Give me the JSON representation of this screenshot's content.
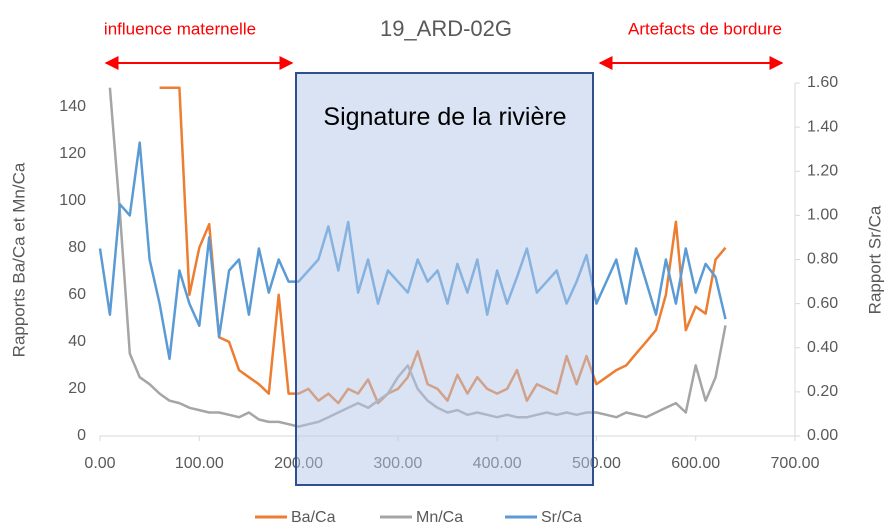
{
  "chart_data": {
    "type": "line",
    "title": "19_ARD-02G",
    "y_label": "Rapports Ba/Ca et Mn/Ca",
    "y2_label": "Rapport Sr/Ca",
    "annotations": [
      "influence maternelle",
      "Artefacts de bordure",
      "Signature de la rivière"
    ],
    "x": [
      0,
      10,
      20,
      30,
      40,
      50,
      60,
      70,
      80,
      90,
      100,
      110,
      120,
      130,
      140,
      150,
      160,
      170,
      180,
      190,
      200,
      210,
      220,
      230,
      240,
      250,
      260,
      270,
      280,
      290,
      300,
      310,
      320,
      330,
      340,
      350,
      360,
      370,
      380,
      390,
      400,
      410,
      420,
      430,
      440,
      450,
      460,
      470,
      480,
      490,
      500,
      510,
      520,
      530,
      540,
      550,
      560,
      570,
      580,
      590,
      600,
      610,
      620,
      630
    ],
    "xlim": [
      0,
      700
    ],
    "xticks": [
      {
        "value": 0,
        "label": "0.00"
      },
      {
        "value": 100,
        "label": "100.00"
      },
      {
        "value": 200,
        "label": "200.00"
      },
      {
        "value": 300,
        "label": "300.00"
      },
      {
        "value": 400,
        "label": "400.00"
      },
      {
        "value": 500,
        "label": "500.00"
      },
      {
        "value": 600,
        "label": "600.00"
      },
      {
        "value": 700,
        "label": "700.00"
      }
    ],
    "ylim": [
      0,
      150
    ],
    "yticks": [
      0,
      20,
      40,
      60,
      80,
      100,
      120,
      140
    ],
    "y2lim": [
      0,
      1.6
    ],
    "y2ticks": [
      {
        "value": 0,
        "label": "0.00"
      },
      {
        "value": 0.2,
        "label": "0.20"
      },
      {
        "value": 0.4,
        "label": "0.40"
      },
      {
        "value": 0.6,
        "label": "0.60"
      },
      {
        "value": 0.8,
        "label": "0.80"
      },
      {
        "value": 1,
        "label": "1.00"
      },
      {
        "value": 1.2,
        "label": "1.20"
      },
      {
        "value": 1.4,
        "label": "1.40"
      },
      {
        "value": 1.6,
        "label": "1.60"
      }
    ],
    "series": [
      {
        "name": "Ba/Ca",
        "color": "#ed7d31",
        "values": [
          null,
          null,
          null,
          null,
          null,
          null,
          148,
          148,
          148,
          60,
          80,
          90,
          42,
          40,
          28,
          25,
          22,
          18,
          60,
          18,
          18,
          20,
          15,
          18,
          14,
          20,
          18,
          24,
          14,
          18,
          20,
          25,
          36,
          22,
          20,
          15,
          26,
          18,
          25,
          20,
          18,
          20,
          28,
          15,
          22,
          20,
          18,
          34,
          22,
          34,
          22,
          25,
          28,
          30,
          35,
          40,
          45,
          60,
          91,
          45,
          55,
          52,
          75,
          80
        ]
      },
      {
        "name": "Mn/Ca",
        "color": "#a5a5a5",
        "values": [
          null,
          148,
          95,
          35,
          25,
          22,
          18,
          15,
          14,
          12,
          11,
          10,
          10,
          9,
          8,
          10,
          7,
          6,
          6,
          5,
          4,
          5,
          6,
          8,
          10,
          12,
          14,
          12,
          15,
          18,
          25,
          30,
          20,
          15,
          12,
          10,
          11,
          9,
          10,
          9,
          8,
          9,
          8,
          8,
          9,
          10,
          9,
          10,
          9,
          10,
          10,
          9,
          8,
          10,
          9,
          8,
          10,
          12,
          14,
          10,
          30,
          15,
          25,
          47
        ]
      },
      {
        "name": "Sr/Ca",
        "color": "#5b9bd5",
        "axis": "y2",
        "values": [
          0.85,
          0.55,
          1.05,
          1.0,
          1.33,
          0.8,
          0.6,
          0.35,
          0.75,
          0.6,
          0.5,
          0.9,
          0.45,
          0.75,
          0.8,
          0.55,
          0.85,
          0.65,
          0.8,
          0.7,
          0.7,
          0.75,
          0.8,
          0.95,
          0.75,
          0.97,
          0.65,
          0.8,
          0.6,
          0.75,
          0.7,
          0.65,
          0.8,
          0.7,
          0.75,
          0.6,
          0.78,
          0.65,
          0.8,
          0.55,
          0.75,
          0.6,
          0.72,
          0.85,
          0.65,
          0.7,
          0.75,
          0.6,
          0.7,
          0.82,
          0.6,
          0.7,
          0.8,
          0.6,
          0.85,
          0.7,
          0.55,
          0.8,
          0.6,
          0.85,
          0.65,
          0.78,
          0.72,
          0.53
        ]
      }
    ]
  }
}
